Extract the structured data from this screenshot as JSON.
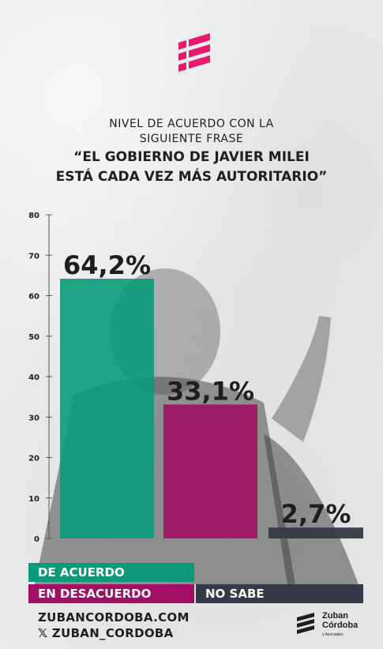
{
  "header": {
    "subtitle_line1": "NIVEL DE ACUERDO CON LA",
    "subtitle_line2": "SIGUIENTE FRASE",
    "quote_line1": "“EL GOBIERNO DE JAVIER MILEI",
    "quote_line2": "ESTÁ CADA VEZ MÁS AUTORITARIO”"
  },
  "colors": {
    "acuerdo": "#0a9a7a",
    "desacuerdo": "#a00f63",
    "no_sabe": "#363a46",
    "logo": "#e8196e",
    "text": "#1e1e1e"
  },
  "chart_data": {
    "type": "bar",
    "categories": [
      "DE ACUERDO",
      "EN DESACUERDO",
      "NO SABE"
    ],
    "values": [
      64.2,
      33.1,
      2.7
    ],
    "value_labels": [
      "64,2%",
      "33,1%",
      "2,7%"
    ],
    "ylim": [
      0,
      80
    ],
    "yticks": [
      "0",
      "10",
      "20",
      "30",
      "40",
      "50",
      "60",
      "70",
      "80"
    ],
    "title": "",
    "xlabel": "",
    "ylabel": ""
  },
  "legend": {
    "acuerdo_label": "DE ACUERDO",
    "desacuerdo_label": "EN DESACUERDO",
    "no_sabe_label": "NO SABE"
  },
  "footer": {
    "website": "ZUBANCORDOBA.COM",
    "social_icon": "x-icon",
    "social_handle": "𝕏 ZUBAN_CORDOBA",
    "brand_line1": "Zuban",
    "brand_line2": "Córdoba",
    "brand_line3": "y Asociados"
  }
}
